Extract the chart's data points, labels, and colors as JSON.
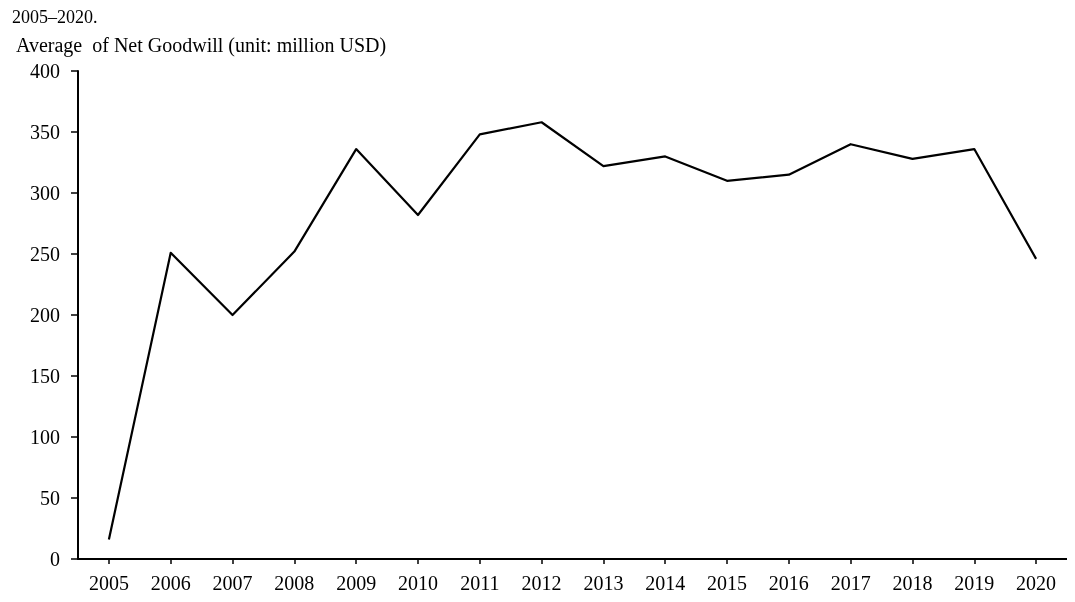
{
  "chart_data": {
    "type": "line",
    "ylabel": "Average  of Net Goodwill (unit: million USD)",
    "annotations": [
      "2005–2020."
    ],
    "categories": [
      "2005",
      "2006",
      "2007",
      "2008",
      "2009",
      "2010",
      "2011",
      "2012",
      "2013",
      "2014",
      "2015",
      "2016",
      "2017",
      "2018",
      "2019",
      "2020"
    ],
    "series": [
      {
        "color": "#000000",
        "values": [
          16,
          251,
          200,
          252,
          336,
          282,
          348,
          358,
          322,
          330,
          310,
          315,
          340,
          328,
          336,
          246
        ]
      }
    ],
    "ylim": [
      0,
      400
    ],
    "yticks": [
      0,
      50,
      100,
      150,
      200,
      250,
      300,
      350,
      400
    ],
    "grid": false,
    "marker": "none",
    "line_style": "solid"
  }
}
